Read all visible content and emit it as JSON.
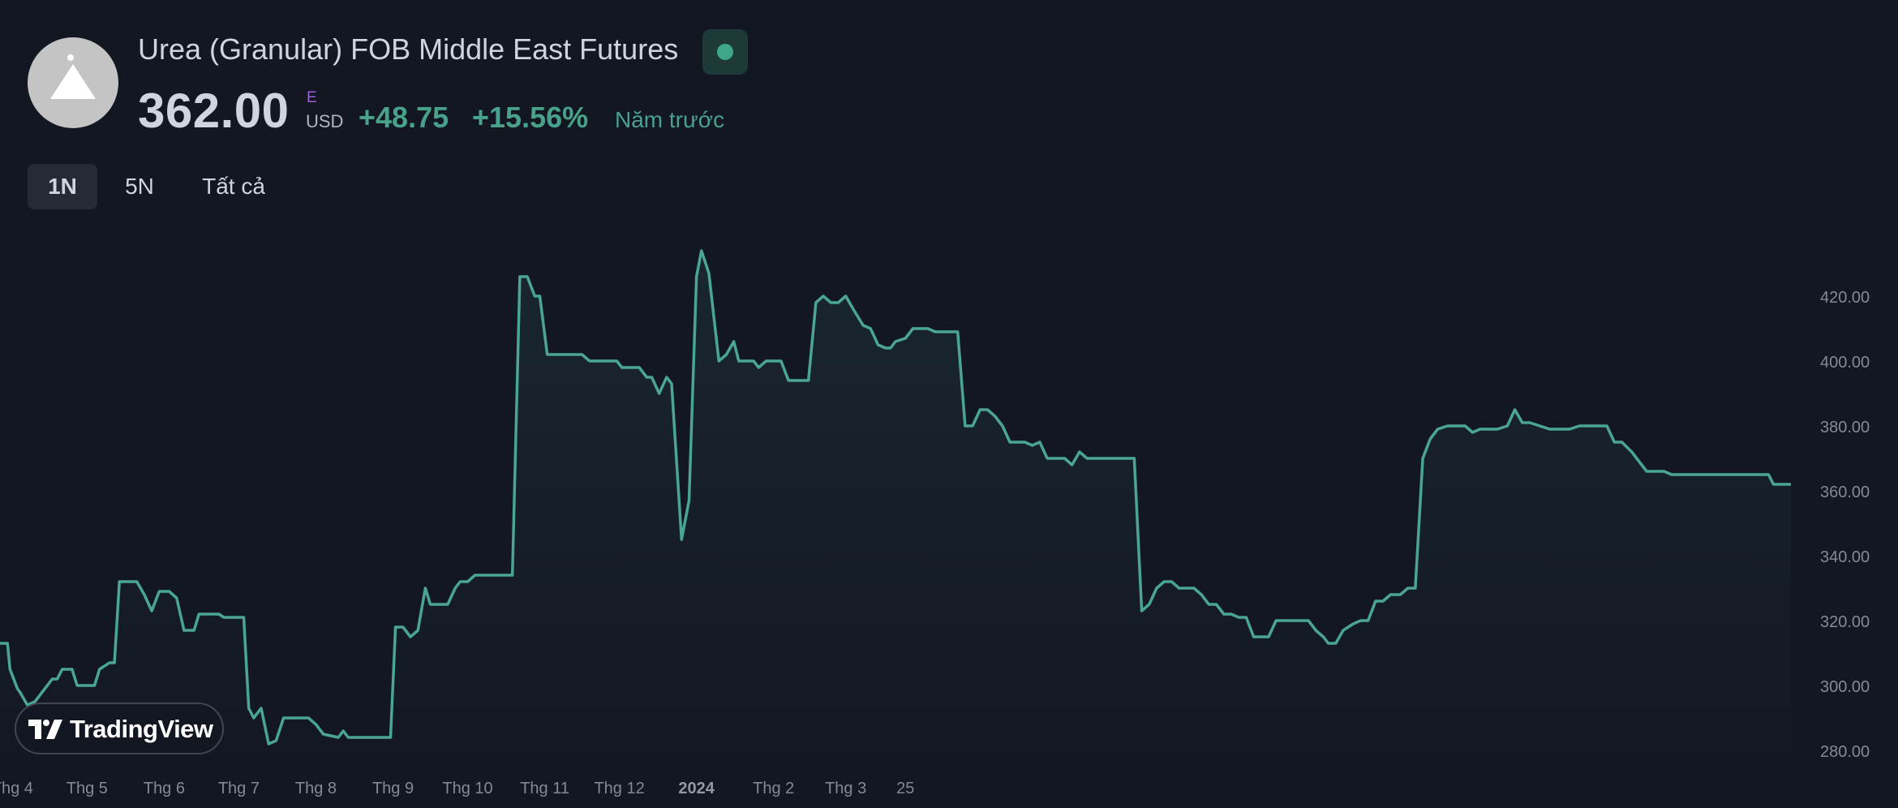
{
  "header": {
    "title": "Urea (Granular) FOB Middle East Futures",
    "price": "362.00",
    "price_flag": "E",
    "currency": "USD",
    "change": "+48.75",
    "change_pct": "+15.56%",
    "period_note": "Năm trước"
  },
  "range_tabs": [
    {
      "label": "1N",
      "active": true
    },
    {
      "label": "5N",
      "active": false
    },
    {
      "label": "Tất cả",
      "active": false
    }
  ],
  "branding": {
    "label": "TradingView"
  },
  "colors": {
    "background": "#131722",
    "line": "#4aa593",
    "text": "#d1d4dc",
    "axis_text": "#868993",
    "positive": "#48a28a"
  },
  "chart_data": {
    "type": "area",
    "ylim": [
      275,
      440
    ],
    "y_ticks": [
      280,
      300,
      320,
      340,
      360,
      380,
      400,
      420
    ],
    "y_tick_labels": [
      "280.00",
      "300.00",
      "320.00",
      "340.00",
      "360.00",
      "380.00",
      "400.00",
      "420.00"
    ],
    "x_labels": [
      {
        "label": "Thg 4",
        "date": "2023-04-01",
        "bold": false
      },
      {
        "label": "Thg 5",
        "date": "2023-05-01",
        "bold": false
      },
      {
        "label": "Thg 6",
        "date": "2023-06-01",
        "bold": false
      },
      {
        "label": "Thg 7",
        "date": "2023-07-01",
        "bold": false
      },
      {
        "label": "Thg 8",
        "date": "2023-08-01",
        "bold": false
      },
      {
        "label": "Thg 9",
        "date": "2023-09-01",
        "bold": false
      },
      {
        "label": "Thg 10",
        "date": "2023-10-01",
        "bold": false
      },
      {
        "label": "Thg 11",
        "date": "2023-11-01",
        "bold": false
      },
      {
        "label": "Thg 12",
        "date": "2023-12-01",
        "bold": false
      },
      {
        "label": "2024",
        "date": "2024-01-01",
        "bold": true
      },
      {
        "label": "Thg 2",
        "date": "2024-02-01",
        "bold": false
      },
      {
        "label": "Thg 3",
        "date": "2024-03-01",
        "bold": false
      },
      {
        "label": "25",
        "date": "2024-03-25",
        "bold": false
      }
    ],
    "series": [
      {
        "points": [
          [
            "2023-03-27",
            313
          ],
          [
            "2023-03-30",
            313
          ],
          [
            "2023-03-31",
            305
          ],
          [
            "2023-04-03",
            299
          ],
          [
            "2023-04-04",
            298
          ],
          [
            "2023-04-07",
            294
          ],
          [
            "2023-04-10",
            295
          ],
          [
            "2023-04-12",
            297
          ],
          [
            "2023-04-15",
            300
          ],
          [
            "2023-04-17",
            302
          ],
          [
            "2023-04-19",
            302
          ],
          [
            "2023-04-21",
            305
          ],
          [
            "2023-04-25",
            305
          ],
          [
            "2023-04-27",
            300
          ],
          [
            "2023-05-04",
            300
          ],
          [
            "2023-05-06",
            305
          ],
          [
            "2023-05-10",
            307
          ],
          [
            "2023-05-12",
            307
          ],
          [
            "2023-05-14",
            332
          ],
          [
            "2023-05-17",
            332
          ],
          [
            "2023-05-21",
            332
          ],
          [
            "2023-05-24",
            328
          ],
          [
            "2023-05-27",
            323
          ],
          [
            "2023-05-30",
            329
          ],
          [
            "2023-06-03",
            329
          ],
          [
            "2023-06-06",
            327
          ],
          [
            "2023-06-09",
            317
          ],
          [
            "2023-06-13",
            317
          ],
          [
            "2023-06-15",
            322
          ],
          [
            "2023-06-19",
            322
          ],
          [
            "2023-06-23",
            322
          ],
          [
            "2023-06-25",
            321
          ],
          [
            "2023-07-03",
            321
          ],
          [
            "2023-07-05",
            293
          ],
          [
            "2023-07-07",
            290
          ],
          [
            "2023-07-10",
            293
          ],
          [
            "2023-07-13",
            282
          ],
          [
            "2023-07-16",
            283
          ],
          [
            "2023-07-19",
            290
          ],
          [
            "2023-07-24",
            290
          ],
          [
            "2023-07-29",
            290
          ],
          [
            "2023-08-01",
            288
          ],
          [
            "2023-08-04",
            285
          ],
          [
            "2023-08-10",
            284
          ],
          [
            "2023-08-12",
            286
          ],
          [
            "2023-08-14",
            284
          ],
          [
            "2023-08-20",
            284
          ],
          [
            "2023-08-24",
            284
          ],
          [
            "2023-08-28",
            284
          ],
          [
            "2023-08-31",
            284
          ],
          [
            "2023-09-02",
            318
          ],
          [
            "2023-09-05",
            318
          ],
          [
            "2023-09-08",
            315
          ],
          [
            "2023-09-11",
            317
          ],
          [
            "2023-09-14",
            330
          ],
          [
            "2023-09-16",
            325
          ],
          [
            "2023-09-20",
            325
          ],
          [
            "2023-09-23",
            325
          ],
          [
            "2023-09-26",
            330
          ],
          [
            "2023-09-28",
            332
          ],
          [
            "2023-10-01",
            332
          ],
          [
            "2023-10-04",
            334
          ],
          [
            "2023-10-08",
            334
          ],
          [
            "2023-10-12",
            334
          ],
          [
            "2023-10-14",
            334
          ],
          [
            "2023-10-17",
            334
          ],
          [
            "2023-10-19",
            334
          ],
          [
            "2023-10-22",
            426
          ],
          [
            "2023-10-25",
            426
          ],
          [
            "2023-10-28",
            420
          ],
          [
            "2023-10-30",
            420
          ],
          [
            "2023-11-02",
            402
          ],
          [
            "2023-11-08",
            402
          ],
          [
            "2023-11-13",
            402
          ],
          [
            "2023-11-16",
            402
          ],
          [
            "2023-11-19",
            400
          ],
          [
            "2023-11-24",
            400
          ],
          [
            "2023-11-28",
            400
          ],
          [
            "2023-11-30",
            400
          ],
          [
            "2023-12-02",
            398
          ],
          [
            "2023-12-05",
            398
          ],
          [
            "2023-12-09",
            398
          ],
          [
            "2023-12-12",
            395
          ],
          [
            "2023-12-14",
            395
          ],
          [
            "2023-12-17",
            390
          ],
          [
            "2023-12-20",
            395
          ],
          [
            "2023-12-22",
            393
          ],
          [
            "2023-12-26",
            345
          ],
          [
            "2023-12-29",
            357
          ],
          [
            "2024-01-01",
            426
          ],
          [
            "2024-01-03",
            434
          ],
          [
            "2024-01-06",
            427
          ],
          [
            "2024-01-10",
            400
          ],
          [
            "2024-01-13",
            402
          ],
          [
            "2024-01-16",
            406
          ],
          [
            "2024-01-18",
            400
          ],
          [
            "2024-01-22",
            400
          ],
          [
            "2024-01-24",
            400
          ],
          [
            "2024-01-26",
            398
          ],
          [
            "2024-01-29",
            400
          ],
          [
            "2024-02-01",
            400
          ],
          [
            "2024-02-04",
            400
          ],
          [
            "2024-02-07",
            394
          ],
          [
            "2024-02-10",
            394
          ],
          [
            "2024-02-13",
            394
          ],
          [
            "2024-02-15",
            394
          ],
          [
            "2024-02-18",
            418
          ],
          [
            "2024-02-21",
            420
          ],
          [
            "2024-02-24",
            418
          ],
          [
            "2024-02-27",
            418
          ],
          [
            "2024-03-01",
            420
          ],
          [
            "2024-03-04",
            416
          ],
          [
            "2024-03-08",
            411
          ],
          [
            "2024-03-11",
            410
          ],
          [
            "2024-03-14",
            405
          ],
          [
            "2024-03-17",
            404
          ],
          [
            "2024-03-19",
            404
          ],
          [
            "2024-03-21",
            406
          ],
          [
            "2024-03-25",
            407
          ],
          [
            "2024-03-28",
            410
          ],
          [
            "2024-03-31",
            410
          ],
          [
            "2024-04-03",
            410
          ],
          [
            "2024-04-06",
            409
          ],
          [
            "2024-04-08",
            409
          ],
          [
            "2024-04-11",
            409
          ],
          [
            "2024-04-14",
            409
          ],
          [
            "2024-04-15",
            409
          ],
          [
            "2024-04-18",
            380
          ],
          [
            "2024-04-21",
            380
          ],
          [
            "2024-04-24",
            385
          ],
          [
            "2024-04-27",
            385
          ],
          [
            "2024-04-30",
            383
          ],
          [
            "2024-05-03",
            380
          ],
          [
            "2024-05-06",
            375
          ],
          [
            "2024-05-09",
            375
          ],
          [
            "2024-05-12",
            375
          ],
          [
            "2024-05-15",
            374
          ],
          [
            "2024-05-18",
            375
          ],
          [
            "2024-05-21",
            370
          ],
          [
            "2024-05-24",
            370
          ],
          [
            "2024-05-28",
            370
          ],
          [
            "2024-05-31",
            368
          ],
          [
            "2024-06-03",
            372
          ],
          [
            "2024-06-06",
            370
          ],
          [
            "2024-06-10",
            370
          ],
          [
            "2024-06-14",
            370
          ],
          [
            "2024-06-18",
            370
          ],
          [
            "2024-06-22",
            370
          ],
          [
            "2024-06-25",
            370
          ],
          [
            "2024-06-28",
            323
          ],
          [
            "2024-07-01",
            325
          ],
          [
            "2024-07-04",
            330
          ],
          [
            "2024-07-07",
            332
          ],
          [
            "2024-07-10",
            332
          ],
          [
            "2024-07-13",
            330
          ],
          [
            "2024-07-16",
            330
          ],
          [
            "2024-07-19",
            330
          ],
          [
            "2024-07-22",
            328
          ],
          [
            "2024-07-25",
            325
          ],
          [
            "2024-07-28",
            325
          ],
          [
            "2024-07-31",
            322
          ],
          [
            "2024-08-03",
            322
          ],
          [
            "2024-08-06",
            321
          ],
          [
            "2024-08-09",
            321
          ],
          [
            "2024-08-12",
            315
          ],
          [
            "2024-08-15",
            315
          ],
          [
            "2024-08-18",
            315
          ],
          [
            "2024-08-21",
            320
          ],
          [
            "2024-08-24",
            320
          ],
          [
            "2024-08-28",
            320
          ],
          [
            "2024-08-31",
            320
          ],
          [
            "2024-09-03",
            320
          ],
          [
            "2024-09-06",
            317
          ],
          [
            "2024-09-09",
            315
          ],
          [
            "2024-09-11",
            313
          ],
          [
            "2024-09-14",
            313
          ],
          [
            "2024-09-17",
            317
          ],
          [
            "2024-09-21",
            319
          ],
          [
            "2024-09-24",
            320
          ],
          [
            "2024-09-27",
            320
          ],
          [
            "2024-09-30",
            326
          ],
          [
            "2024-10-03",
            326
          ],
          [
            "2024-10-06",
            328
          ],
          [
            "2024-10-10",
            328
          ],
          [
            "2024-10-13",
            330
          ],
          [
            "2024-10-16",
            330
          ],
          [
            "2024-10-19",
            370
          ],
          [
            "2024-10-22",
            376
          ],
          [
            "2024-10-25",
            379
          ],
          [
            "2024-10-29",
            380
          ],
          [
            "2024-11-02",
            380
          ],
          [
            "2024-11-05",
            380
          ],
          [
            "2024-11-08",
            378
          ],
          [
            "2024-11-11",
            379
          ],
          [
            "2024-11-15",
            379
          ],
          [
            "2024-11-18",
            379
          ],
          [
            "2024-11-22",
            380
          ],
          [
            "2024-11-25",
            385
          ],
          [
            "2024-11-28",
            381
          ],
          [
            "2024-12-01",
            381
          ],
          [
            "2024-12-05",
            380
          ],
          [
            "2024-12-09",
            379
          ],
          [
            "2024-12-13",
            379
          ],
          [
            "2024-12-17",
            379
          ],
          [
            "2024-12-21",
            380
          ],
          [
            "2024-12-25",
            380
          ],
          [
            "2024-12-29",
            380
          ],
          [
            "2025-01-01",
            380
          ],
          [
            "2025-01-04",
            375
          ],
          [
            "2025-01-07",
            375
          ],
          [
            "2025-01-11",
            372
          ],
          [
            "2025-01-14",
            369
          ],
          [
            "2025-01-17",
            366
          ],
          [
            "2025-01-21",
            366
          ],
          [
            "2025-01-24",
            366
          ],
          [
            "2025-01-27",
            365
          ],
          [
            "2025-02-01",
            365
          ],
          [
            "2025-02-05",
            365
          ],
          [
            "2025-02-09",
            365
          ],
          [
            "2025-02-13",
            365
          ],
          [
            "2025-02-17",
            365
          ],
          [
            "2025-02-21",
            365
          ],
          [
            "2025-02-25",
            365
          ],
          [
            "2025-02-28",
            365
          ],
          [
            "2025-03-03",
            365
          ],
          [
            "2025-03-07",
            365
          ],
          [
            "2025-03-09",
            362
          ],
          [
            "2025-03-13",
            362
          ],
          [
            "2025-03-16",
            362
          ]
        ]
      }
    ]
  }
}
